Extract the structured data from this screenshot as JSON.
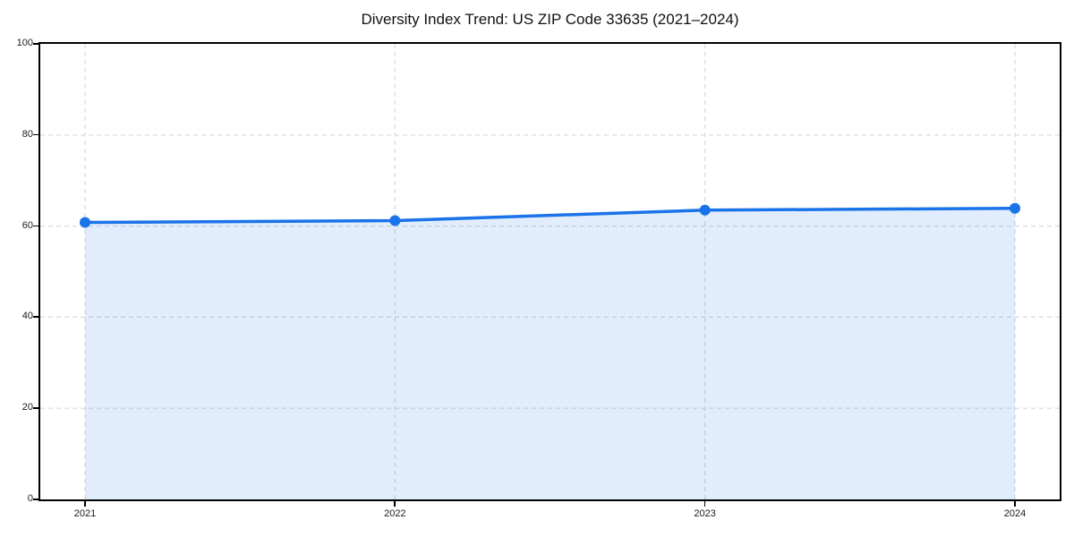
{
  "chart_data": {
    "type": "area",
    "title": "Diversity Index Trend: US ZIP Code 33635 (2021–2024)",
    "x": [
      "2021",
      "2022",
      "2023",
      "2024"
    ],
    "series": [
      {
        "name": "Diversity Index",
        "values": [
          60.8,
          61.2,
          63.5,
          63.9
        ]
      }
    ],
    "xlabel": "",
    "ylabel": "",
    "ylim": [
      0,
      100
    ],
    "y_ticks": [
      0,
      20,
      40,
      60,
      80,
      100
    ],
    "grid": "dashed-both-axes",
    "legend": "none",
    "colors": {
      "line": "#1a73e8",
      "marker": "#1a73e8",
      "fill": "rgba(26,115,232,0.13)",
      "gridline": "#d9d9d9",
      "axis": "#000000",
      "text": "#1a1a1a",
      "background": "#ffffff"
    }
  }
}
